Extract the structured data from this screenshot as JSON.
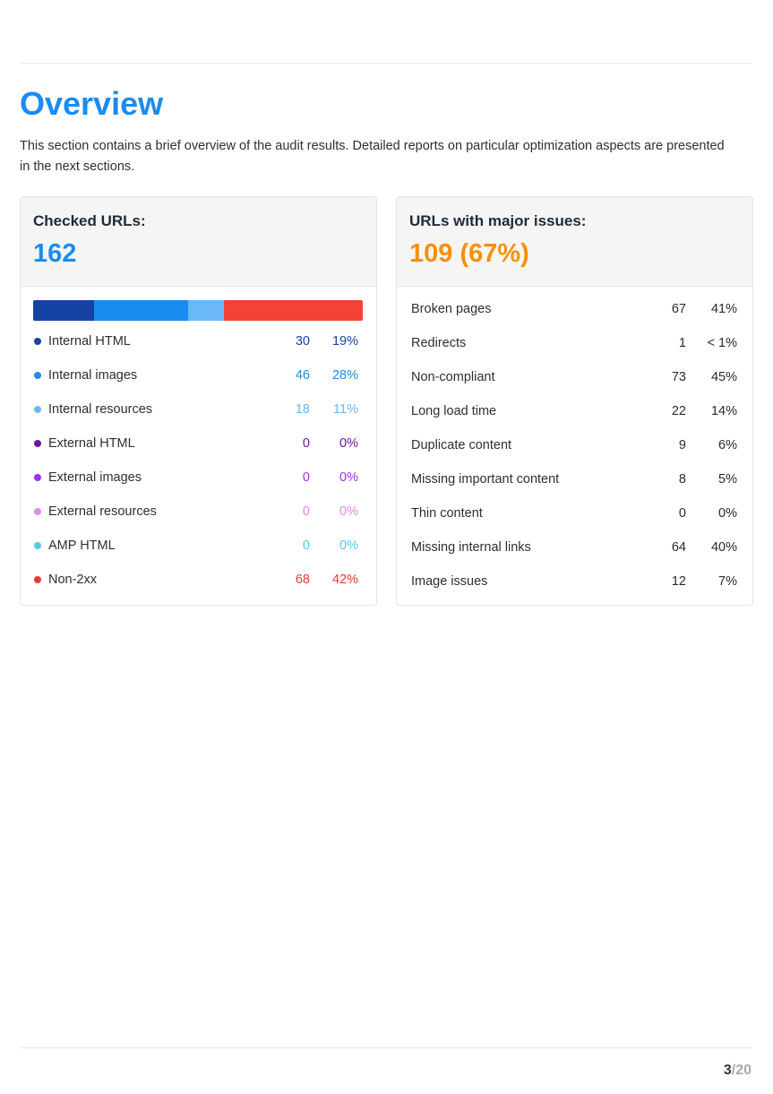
{
  "page": {
    "title": "Overview",
    "intro": "This section contains a brief overview of the audit results. Detailed reports on particular optimization aspects are presented in the next sections.",
    "page_current": "3",
    "page_total": "/20"
  },
  "checked": {
    "label": "Checked URLs:",
    "value": "162",
    "bar_fractions": [
      0.185,
      0.284,
      0.111,
      0.42
    ],
    "bar_colors": [
      "#1543a3",
      "#1a8cf0",
      "#6ab8f7",
      "#f44336"
    ],
    "rows": [
      {
        "label": "Internal HTML",
        "count": "30",
        "pct": "19%",
        "color": "#1543a3"
      },
      {
        "label": "Internal images",
        "count": "46",
        "pct": "28%",
        "color": "#1a8cf0"
      },
      {
        "label": "Internal resources",
        "count": "18",
        "pct": "11%",
        "color": "#6ab8f7"
      },
      {
        "label": "External HTML",
        "count": "0",
        "pct": "0%",
        "color": "#6a1b9a"
      },
      {
        "label": "External images",
        "count": "0",
        "pct": "0%",
        "color": "#a62ee8"
      },
      {
        "label": "External resources",
        "count": "0",
        "pct": "0%",
        "color": "#e28af0"
      },
      {
        "label": "AMP HTML",
        "count": "0",
        "pct": "0%",
        "color": "#57c8e3"
      },
      {
        "label": "Non-2xx",
        "count": "68",
        "pct": "42%",
        "color": "#e53935"
      }
    ]
  },
  "issues": {
    "label": "URLs with major issues:",
    "value": "109 (67%)",
    "rows": [
      {
        "label": "Broken pages",
        "count": "67",
        "pct": "41%"
      },
      {
        "label": "Redirects",
        "count": "1",
        "pct": "< 1%"
      },
      {
        "label": "Non-compliant",
        "count": "73",
        "pct": "45%"
      },
      {
        "label": "Long load time",
        "count": "22",
        "pct": "14%"
      },
      {
        "label": "Duplicate content",
        "count": "9",
        "pct": "6%"
      },
      {
        "label": "Missing important content",
        "count": "8",
        "pct": "5%"
      },
      {
        "label": "Thin content",
        "count": "0",
        "pct": "0%"
      },
      {
        "label": "Missing internal links",
        "count": "64",
        "pct": "40%"
      },
      {
        "label": "Image issues",
        "count": "12",
        "pct": "7%"
      }
    ]
  }
}
